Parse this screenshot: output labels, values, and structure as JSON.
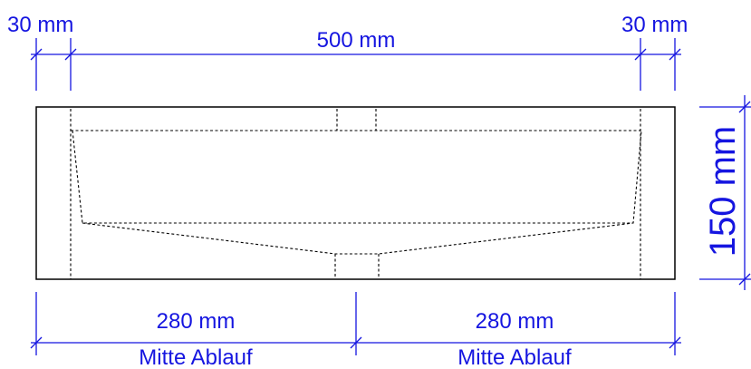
{
  "dimensions": {
    "top_left_width": "30 mm",
    "top_center_width": "500 mm",
    "top_right_width": "30 mm",
    "height": "150 mm",
    "bottom_left_width": "280 mm",
    "bottom_right_width": "280 mm",
    "bottom_left_note": "Mitte Ablauf",
    "bottom_right_note": "Mitte Ablauf"
  },
  "colors": {
    "dimension": "#1515e0",
    "outline": "#000000"
  }
}
